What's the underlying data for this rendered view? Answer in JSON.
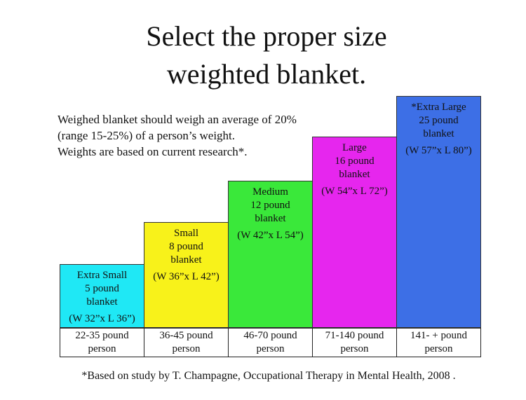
{
  "header": {
    "title_lines": [
      "Select the proper size",
      "weighted blanket."
    ]
  },
  "intro": {
    "lines": [
      "Weighed blanket should weigh an average of 20%",
      "(range 15-25%) of a person’s weight.",
      "Weights are based on current research*."
    ]
  },
  "sizes": [
    {
      "lines": [
        "Extra Small",
        "5 pound",
        "blanket"
      ],
      "dimensions": "(W 32”x L 36”)",
      "person": [
        "22-35 pound",
        "person"
      ],
      "color": "#1fe8f5"
    },
    {
      "lines": [
        "Small",
        "8 pound",
        "blanket"
      ],
      "dimensions": "(W 36”x L 42”)",
      "person": [
        "36-45 pound",
        "person"
      ],
      "color": "#f8f21a"
    },
    {
      "lines": [
        "Medium",
        "12 pound",
        "blanket"
      ],
      "dimensions": "(W 42”x L 54”)",
      "person": [
        "46-70 pound",
        "person"
      ],
      "color": "#3ae83a"
    },
    {
      "lines": [
        "Large",
        "16 pound",
        "blanket"
      ],
      "dimensions": "(W 54”x L 72”)",
      "person": [
        "71-140 pound",
        "person"
      ],
      "color": "#e626ee"
    },
    {
      "lines": [
        "*Extra Large",
        "25 pound",
        "blanket"
      ],
      "dimensions": "(W 57”x L 80”)",
      "person": [
        "141- + pound",
        "person"
      ],
      "color": "#3d6fe6"
    }
  ],
  "footnote": "*Based on study by T. Champagne, Occupational Therapy in Mental Health, 2008 ."
}
